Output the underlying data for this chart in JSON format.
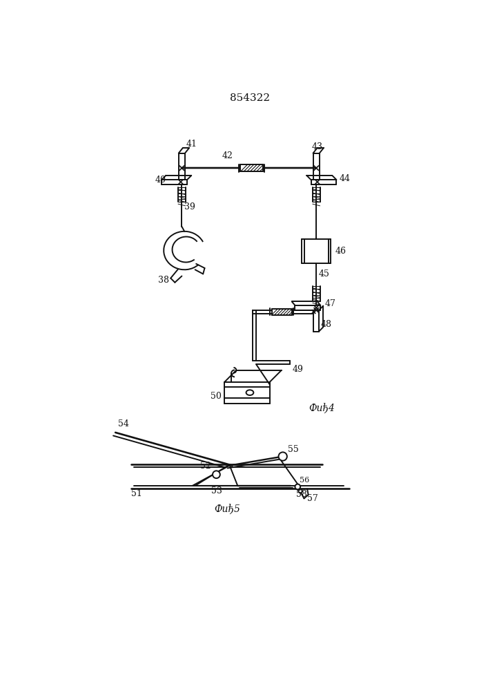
{
  "title": "854322",
  "bg_color": "#ffffff",
  "line_color": "#111111",
  "fig4_label": "Фиђ4",
  "fig5_label": "Фиђ5",
  "lw": 1.4
}
